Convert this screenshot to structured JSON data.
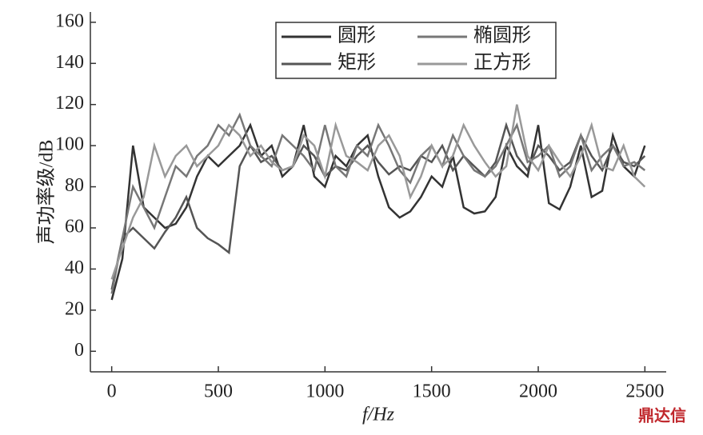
{
  "chart_data": {
    "type": "line",
    "xlabel": "f/Hz",
    "ylabel": "声功率级/dB",
    "watermark": "鼎达信",
    "x": [
      0,
      50,
      100,
      150,
      200,
      250,
      300,
      350,
      400,
      450,
      500,
      550,
      600,
      650,
      700,
      750,
      800,
      850,
      900,
      950,
      1000,
      1050,
      1100,
      1150,
      1200,
      1250,
      1300,
      1350,
      1400,
      1450,
      1500,
      1550,
      1600,
      1650,
      1700,
      1750,
      1800,
      1850,
      1900,
      1950,
      2000,
      2050,
      2100,
      2150,
      2200,
      2250,
      2300,
      2350,
      2400,
      2450,
      2500
    ],
    "series": [
      {
        "name": "圆形",
        "color": "#333333",
        "values": [
          25,
          45,
          100,
          70,
          65,
          60,
          62,
          70,
          85,
          95,
          90,
          95,
          100,
          110,
          95,
          100,
          85,
          90,
          110,
          85,
          80,
          95,
          90,
          100,
          105,
          85,
          70,
          65,
          68,
          75,
          85,
          80,
          95,
          70,
          67,
          68,
          75,
          100,
          90,
          85,
          110,
          72,
          69,
          80,
          100,
          75,
          78,
          105,
          90,
          85,
          100
        ]
      },
      {
        "name": "矩形",
        "color": "#555555",
        "values": [
          30,
          55,
          60,
          55,
          50,
          58,
          65,
          75,
          60,
          55,
          52,
          48,
          90,
          100,
          92,
          95,
          88,
          90,
          100,
          95,
          85,
          90,
          88,
          95,
          100,
          92,
          86,
          90,
          88,
          95,
          92,
          100,
          88,
          95,
          90,
          85,
          92,
          110,
          95,
          88,
          100,
          95,
          88,
          92,
          105,
          95,
          88,
          100,
          92,
          90,
          95
        ]
      },
      {
        "name": "椭圆形",
        "color": "#777777",
        "values": [
          28,
          55,
          80,
          70,
          60,
          75,
          90,
          85,
          95,
          100,
          110,
          105,
          115,
          100,
          95,
          90,
          105,
          100,
          95,
          88,
          110,
          90,
          85,
          100,
          95,
          110,
          100,
          88,
          82,
          95,
          100,
          90,
          105,
          95,
          88,
          85,
          90,
          100,
          110,
          92,
          95,
          100,
          85,
          90,
          105,
          88,
          95,
          100,
          90,
          92,
          88
        ]
      },
      {
        "name": "正方形",
        "color": "#999999",
        "values": [
          35,
          50,
          65,
          75,
          100,
          85,
          95,
          100,
          90,
          95,
          100,
          110,
          105,
          95,
          100,
          92,
          88,
          90,
          105,
          100,
          85,
          110,
          95,
          92,
          88,
          100,
          105,
          95,
          75,
          85,
          100,
          90,
          95,
          110,
          100,
          92,
          85,
          90,
          120,
          95,
          88,
          100,
          92,
          85,
          95,
          110,
          90,
          88,
          100,
          85,
          80
        ]
      }
    ],
    "xlim": [
      -100,
      2600
    ],
    "ylim": [
      -10,
      165
    ],
    "xticks": [
      0,
      500,
      1000,
      1500,
      2000,
      2500
    ],
    "yticks": [
      0,
      20,
      40,
      60,
      80,
      100,
      120,
      140,
      160
    ],
    "legend": "upper center",
    "grid": false
  }
}
